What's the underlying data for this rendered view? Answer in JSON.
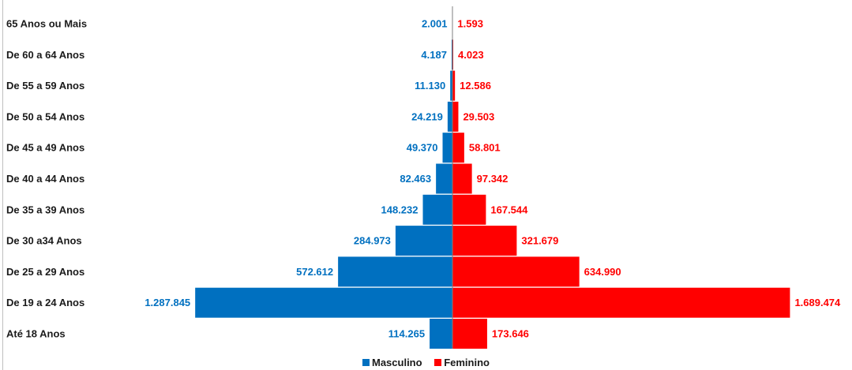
{
  "chart_data": {
    "type": "bar",
    "orientation": "horizontal-population-pyramid",
    "categories": [
      "65 Anos ou Mais",
      "De 60 a 64 Anos",
      "De 55 a 59 Anos",
      "De 50 a 54 Anos",
      "De 45 a 49 Anos",
      "De 40 a 44 Anos",
      "De 35 a 39 Anos",
      "De 30 a34 Anos",
      "De 25 a 29 Anos",
      "De 19 a 24 Anos",
      "Até 18 Anos"
    ],
    "series": [
      {
        "name": "Masculino",
        "color": "#0070c0",
        "values": [
          2001,
          4187,
          11130,
          24219,
          49370,
          82463,
          148232,
          284973,
          572612,
          1287845,
          114265
        ],
        "labels": [
          "2.001",
          "4.187",
          "11.130",
          "24.219",
          "49.370",
          "82.463",
          "148.232",
          "284.973",
          "572.612",
          "1.287.845",
          "114.265"
        ]
      },
      {
        "name": "Feminino",
        "color": "#ff0000",
        "values": [
          1593,
          4023,
          12586,
          29503,
          58801,
          97342,
          167544,
          321679,
          634990,
          1689474,
          173646
        ],
        "labels": [
          "1.593",
          "4.023",
          "12.586",
          "29.503",
          "58.801",
          "97.342",
          "167.544",
          "321.679",
          "634.990",
          "1.689.474",
          "173.646"
        ]
      }
    ],
    "title": "",
    "xlabel": "",
    "ylabel": "",
    "grid": false,
    "legend_position": "bottom"
  }
}
